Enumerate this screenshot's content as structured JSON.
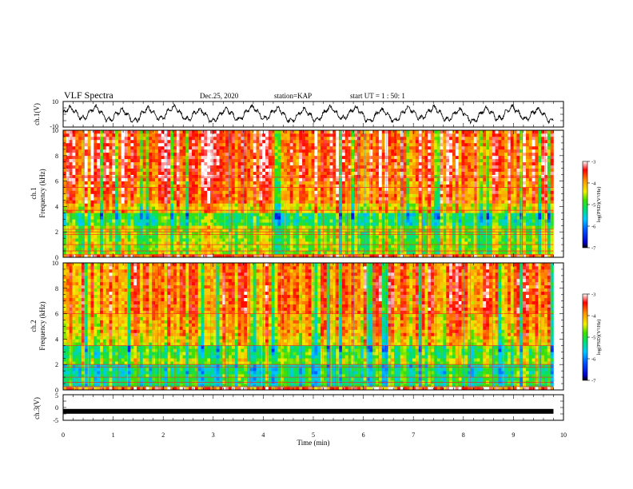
{
  "header": {
    "title": "VLF Spectra",
    "date": "Dec.25, 2020",
    "station": "station=KAP",
    "start": "start  UT =   1 : 50: 1"
  },
  "chart_data": [
    {
      "type": "line",
      "panel": "ch1-waveform",
      "ylabel": "ch.1(V)",
      "ylim": [
        -10,
        10
      ],
      "yticks": [
        "10",
        "-10"
      ],
      "xlim": [
        0,
        10
      ],
      "note_series": "noisy oscillation roughly between -6 and 6 V with ~0.5 min period"
    },
    {
      "type": "heatmap",
      "panel": "ch1-spectrogram",
      "ylabel": "ch.1",
      "ylabel2": "Frequency (kHz)",
      "ylim": [
        0,
        10
      ],
      "yticks": [
        "0",
        "2",
        "4",
        "6",
        "8",
        "10"
      ],
      "xlim": [
        0,
        9.8
      ],
      "colorbar": {
        "label": "log(PSD)(V²/Hz)",
        "range": [
          -7,
          -3
        ],
        "ticks": [
          "-3",
          "-4",
          "-5",
          "-6",
          "-7"
        ]
      }
    },
    {
      "type": "heatmap",
      "panel": "ch2-spectrogram",
      "ylabel": "ch.2",
      "ylabel2": "Frequency (kHz)",
      "ylim": [
        0,
        10
      ],
      "yticks": [
        "0",
        "2",
        "4",
        "6",
        "8",
        "10"
      ],
      "xlim": [
        0,
        9.8
      ],
      "colorbar": {
        "label": "log(PSD)(V²/Hz)",
        "range": [
          -7,
          -3
        ],
        "ticks": [
          "-3",
          "-4",
          "-5",
          "-6",
          "-7"
        ]
      }
    },
    {
      "type": "line",
      "panel": "ch3-waveform",
      "ylabel": "ch.3(V)",
      "ylim": [
        -5,
        5
      ],
      "yticks": [
        "5",
        "0",
        "-5"
      ],
      "xlabel": "Time (min)",
      "xlim": [
        0,
        10
      ],
      "xticks": [
        "0",
        "1",
        "2",
        "3",
        "4",
        "5",
        "6",
        "7",
        "8",
        "9",
        "10"
      ],
      "series": [
        {
          "values": [
            -1.5,
            -1.5
          ]
        }
      ]
    }
  ]
}
